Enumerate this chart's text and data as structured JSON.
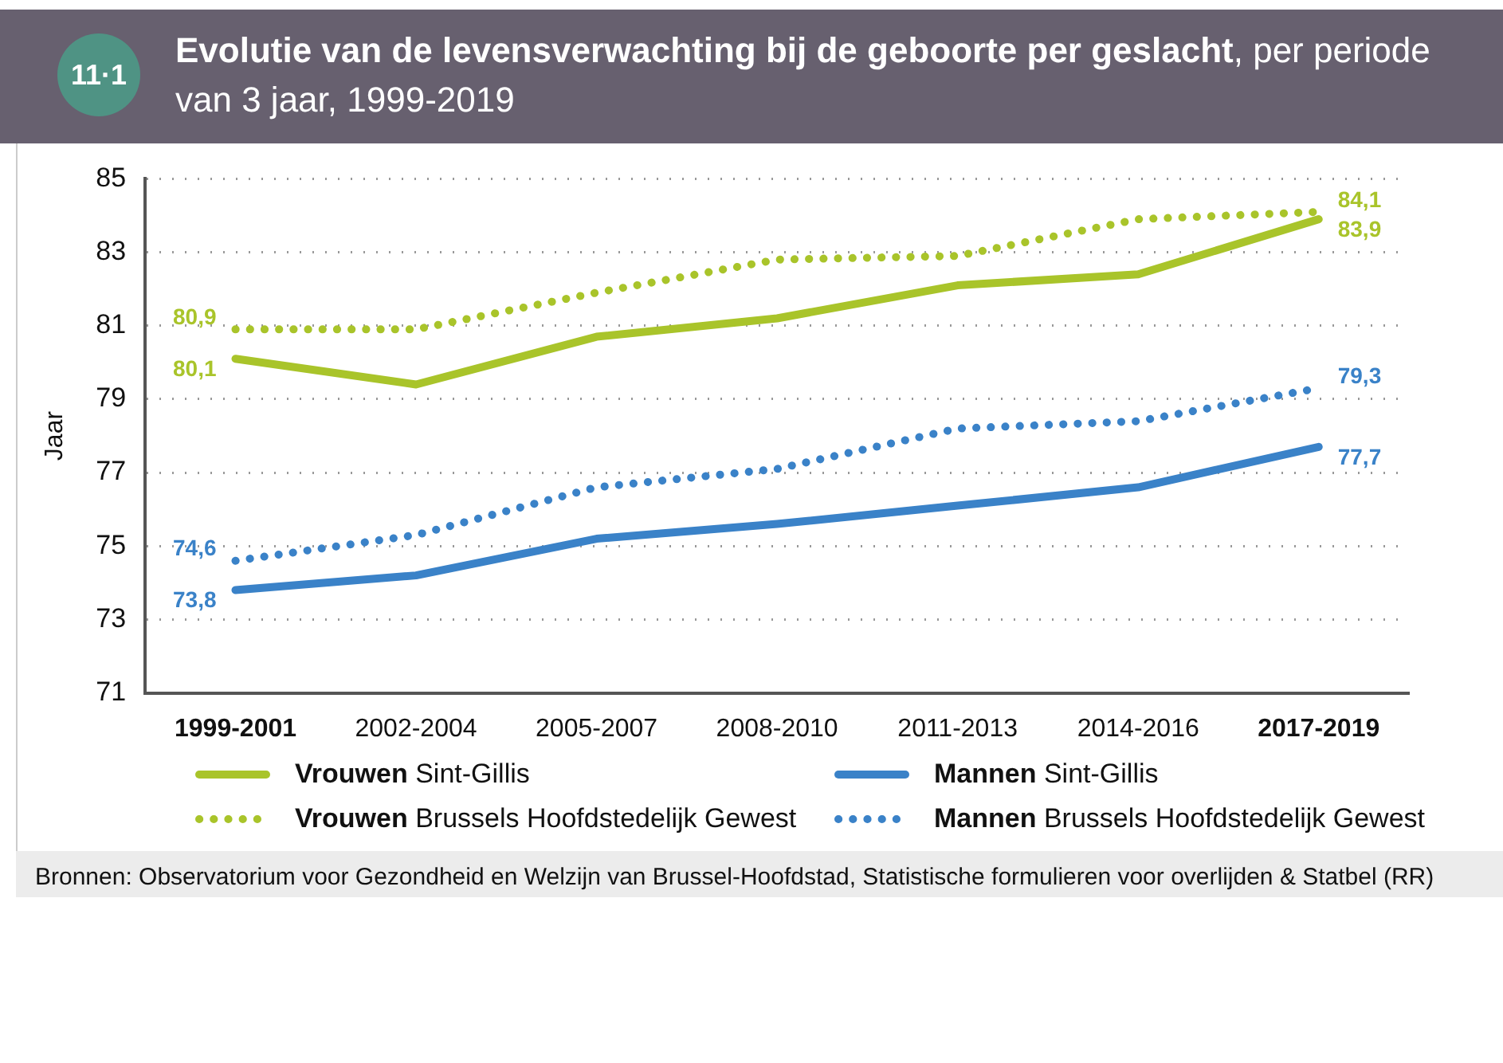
{
  "chart_data": {
    "type": "line",
    "title": "Evolutie van de levensverwachting bij de geboorte per geslacht",
    "subtitle": ", per periode van 3 jaar, 1999-2019",
    "ylabel": "Jaar",
    "categories": [
      "1999-2001",
      "2002-2004",
      "2005-2007",
      "2008-2010",
      "2011-2013",
      "2014-2016",
      "2017-2019"
    ],
    "series": [
      {
        "name": "Vrouwen Sint-Gillis",
        "color": "#a9c42a",
        "line_style": "solid",
        "values": [
          80.1,
          79.4,
          80.7,
          81.2,
          82.1,
          82.4,
          83.9
        ],
        "value_labels": [
          "80,1",
          null,
          null,
          null,
          null,
          null,
          "83,9"
        ]
      },
      {
        "name": "Vrouwen Brussels Hoofdstedelijk Gewest",
        "color": "#a9c42a",
        "line_style": "dotted",
        "values": [
          80.9,
          80.9,
          81.9,
          82.8,
          82.9,
          83.9,
          84.1
        ],
        "value_labels": [
          "80,9",
          null,
          null,
          null,
          null,
          null,
          "84,1"
        ]
      },
      {
        "name": "Mannen Sint-Gillis",
        "color": "#3a82c8",
        "line_style": "solid",
        "values": [
          73.8,
          74.2,
          75.2,
          75.6,
          76.1,
          76.6,
          77.7
        ],
        "value_labels": [
          "73,8",
          null,
          null,
          null,
          null,
          null,
          "77,7"
        ]
      },
      {
        "name": "Mannen Brussels Hoofdstedelijk Gewest",
        "color": "#3a82c8",
        "line_style": "dotted",
        "values": [
          74.6,
          75.3,
          76.6,
          77.1,
          78.2,
          78.4,
          79.3
        ],
        "value_labels": [
          "74,6",
          null,
          null,
          null,
          null,
          null,
          "79,3"
        ]
      }
    ],
    "ylim": [
      71,
      85
    ],
    "yticks": [
      71,
      73,
      75,
      77,
      79,
      81,
      83,
      85
    ],
    "grid": "y",
    "legend": "bottom",
    "marker": "none",
    "annotations": [
      "11·1",
      "Bronnen: Observatorium voor Gezondheid en Welzijn van Brussel-Hoofdstad, Statistische formulieren voor overlijden & Statbel (RR)"
    ]
  }
}
